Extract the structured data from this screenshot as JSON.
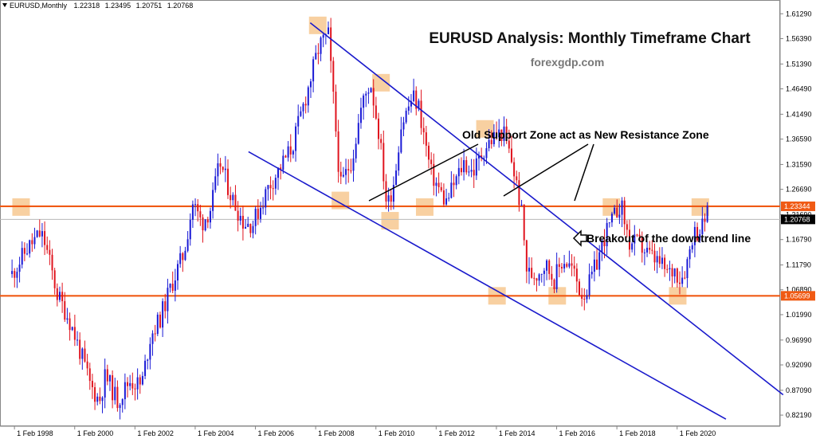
{
  "symbol_bar": {
    "symbol": "EURUSD,Monthly",
    "open": "1.22318",
    "high": "1.23495",
    "low": "1.20751",
    "close": "1.20768"
  },
  "chart_data": {
    "type": "candlestick",
    "title": "EURUSD Analysis: Monthly Timeframe Chart",
    "subtitle": "forexgdp.com",
    "y_range": [
      0.8,
      1.64
    ],
    "y_ticks": [
      "1.61290",
      "1.56390",
      "1.51390",
      "1.46490",
      "1.41490",
      "1.36590",
      "1.31590",
      "1.26690",
      "1.21690",
      "1.16790",
      "1.11790",
      "1.06890",
      "1.01990",
      "0.96990",
      "0.92090",
      "0.87090",
      "0.82190"
    ],
    "x_range": [
      1997.6,
      2023.5
    ],
    "x_ticks": [
      {
        "t": 1998.08,
        "label": "1 Feb 1998"
      },
      {
        "t": 2000.08,
        "label": "1 Feb 2000"
      },
      {
        "t": 2002.08,
        "label": "1 Feb 2002"
      },
      {
        "t": 2004.08,
        "label": "1 Feb 2004"
      },
      {
        "t": 2006.08,
        "label": "1 Feb 2006"
      },
      {
        "t": 2008.08,
        "label": "1 Feb 2008"
      },
      {
        "t": 2010.08,
        "label": "1 Feb 2010"
      },
      {
        "t": 2012.08,
        "label": "1 Feb 2012"
      },
      {
        "t": 2014.08,
        "label": "1 Feb 2014"
      },
      {
        "t": 2016.08,
        "label": "1 Feb 2016"
      },
      {
        "t": 2018.08,
        "label": "1 Feb 2018"
      },
      {
        "t": 2020.08,
        "label": "1 Feb 2020"
      }
    ],
    "colors": {
      "up": "#1a1ad6",
      "down": "#e0141e",
      "level": "#f05a14",
      "trend": "#1a1acc",
      "zone": "#f6c48a"
    },
    "price_labels": [
      {
        "value": 1.23344,
        "text": "1.23344",
        "bg": "#f05a14",
        "fg": "#ffffff"
      },
      {
        "value": 1.20768,
        "text": "1.20768",
        "bg": "#000000",
        "fg": "#ffffff"
      },
      {
        "value": 1.05699,
        "text": "1.05699",
        "bg": "#f05a14",
        "fg": "#ffffff"
      }
    ],
    "horizontal_levels": [
      1.23344,
      1.05699
    ],
    "current_price": 1.20768,
    "trend_lines": [
      {
        "name": "upper-channel-line",
        "from": [
          2007.9,
          1.595
        ],
        "to": [
          2023.6,
          0.862
        ]
      },
      {
        "name": "lower-channel-line",
        "from": [
          2005.85,
          1.341
        ],
        "to": [
          2021.7,
          0.814
        ]
      }
    ],
    "zones": [
      {
        "t": 1998.3,
        "p": 1.232
      },
      {
        "t": 2008.15,
        "p": 1.59
      },
      {
        "t": 2008.9,
        "p": 1.245
      },
      {
        "t": 2010.25,
        "p": 1.477
      },
      {
        "t": 2010.55,
        "p": 1.205
      },
      {
        "t": 2011.7,
        "p": 1.232
      },
      {
        "t": 2013.7,
        "p": 1.386
      },
      {
        "t": 2014.1,
        "p": 1.057
      },
      {
        "t": 2016.1,
        "p": 1.057
      },
      {
        "t": 2017.9,
        "p": 1.232
      },
      {
        "t": 2020.1,
        "p": 1.057
      },
      {
        "t": 2020.85,
        "p": 1.232
      }
    ],
    "annotations": {
      "resistance_text": "Old Support Zone act as New Resistance Zone",
      "breakout_text": "Breakout of the downtrend line"
    },
    "price_path": [
      [
        1998.0,
        1.1
      ],
      [
        1998.5,
        1.15
      ],
      [
        1998.95,
        1.18
      ],
      [
        1999.1,
        1.16
      ],
      [
        1999.5,
        1.06
      ],
      [
        1999.9,
        1.01
      ],
      [
        2000.3,
        0.94
      ],
      [
        2000.6,
        0.88
      ],
      [
        2000.9,
        0.85
      ],
      [
        2001.1,
        0.9
      ],
      [
        2001.5,
        0.85
      ],
      [
        2001.9,
        0.89
      ],
      [
        2002.3,
        0.88
      ],
      [
        2002.6,
        0.98
      ],
      [
        2002.9,
        1.01
      ],
      [
        2003.3,
        1.08
      ],
      [
        2003.7,
        1.14
      ],
      [
        2004.0,
        1.24
      ],
      [
        2004.3,
        1.2
      ],
      [
        2004.6,
        1.23
      ],
      [
        2004.9,
        1.32
      ],
      [
        2005.3,
        1.25
      ],
      [
        2005.7,
        1.2
      ],
      [
        2006.0,
        1.2
      ],
      [
        2006.5,
        1.27
      ],
      [
        2006.9,
        1.31
      ],
      [
        2007.3,
        1.35
      ],
      [
        2007.8,
        1.46
      ],
      [
        2008.2,
        1.55
      ],
      [
        2008.5,
        1.57
      ],
      [
        2008.9,
        1.27
      ],
      [
        2009.1,
        1.3
      ],
      [
        2009.3,
        1.33
      ],
      [
        2009.6,
        1.43
      ],
      [
        2009.9,
        1.48
      ],
      [
        2010.2,
        1.37
      ],
      [
        2010.45,
        1.23
      ],
      [
        2010.7,
        1.29
      ],
      [
        2010.9,
        1.39
      ],
      [
        2011.3,
        1.45
      ],
      [
        2011.5,
        1.43
      ],
      [
        2011.9,
        1.3
      ],
      [
        2012.4,
        1.24
      ],
      [
        2012.7,
        1.28
      ],
      [
        2013.0,
        1.32
      ],
      [
        2013.3,
        1.3
      ],
      [
        2013.7,
        1.35
      ],
      [
        2014.0,
        1.37
      ],
      [
        2014.3,
        1.38
      ],
      [
        2014.6,
        1.32
      ],
      [
        2014.9,
        1.23
      ],
      [
        2015.1,
        1.1
      ],
      [
        2015.4,
        1.1
      ],
      [
        2015.7,
        1.12
      ],
      [
        2016.0,
        1.09
      ],
      [
        2016.3,
        1.13
      ],
      [
        2016.6,
        1.11
      ],
      [
        2016.9,
        1.06
      ],
      [
        2017.1,
        1.07
      ],
      [
        2017.4,
        1.12
      ],
      [
        2017.7,
        1.18
      ],
      [
        2017.9,
        1.2
      ],
      [
        2018.2,
        1.24
      ],
      [
        2018.5,
        1.16
      ],
      [
        2018.8,
        1.16
      ],
      [
        2019.1,
        1.14
      ],
      [
        2019.5,
        1.12
      ],
      [
        2019.8,
        1.1
      ],
      [
        2020.0,
        1.11
      ],
      [
        2020.2,
        1.09
      ],
      [
        2020.4,
        1.12
      ],
      [
        2020.6,
        1.18
      ],
      [
        2020.9,
        1.19
      ],
      [
        2021.05,
        1.22
      ],
      [
        2021.15,
        1.2077
      ]
    ]
  }
}
